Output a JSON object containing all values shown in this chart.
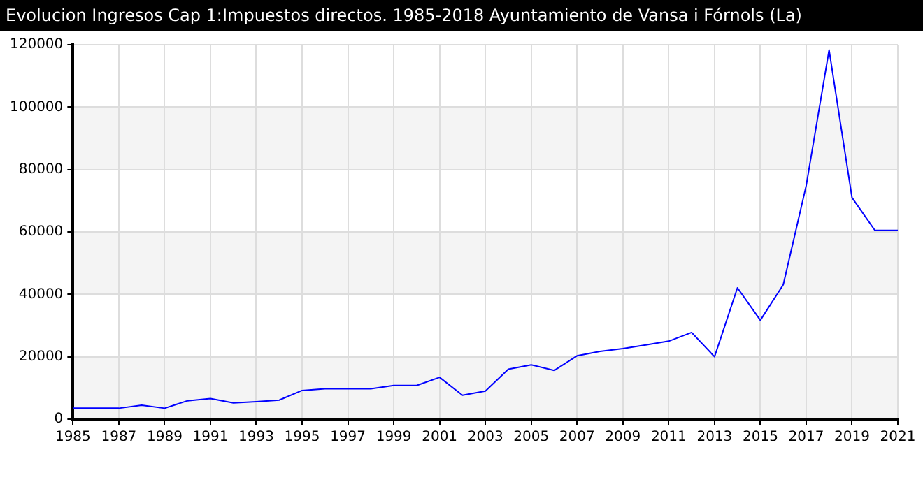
{
  "chart_data": {
    "type": "line",
    "title": "Evolucion Ingresos Cap 1:Impuestos directos. 1985-2018 Ayuntamiento de Vansa i Fórnols (La)",
    "x": [
      1985,
      1986,
      1987,
      1988,
      1989,
      1990,
      1991,
      1992,
      1993,
      1994,
      1995,
      1996,
      1997,
      1998,
      1999,
      2000,
      2001,
      2002,
      2003,
      2004,
      2005,
      2006,
      2007,
      2008,
      2009,
      2010,
      2011,
      2012,
      2013,
      2014,
      2015,
      2016,
      2017,
      2018,
      2019,
      2020,
      2021
    ],
    "series": [
      {
        "color": "#0000ff",
        "values": [
          3500,
          3500,
          3500,
          4500,
          3500,
          5900,
          6600,
          5200,
          5600,
          6100,
          9200,
          9750,
          9750,
          9750,
          10800,
          10800,
          13400,
          7650,
          9000,
          16000,
          17400,
          15600,
          20300,
          21700,
          22600,
          23800,
          25000,
          27800,
          20000,
          42100,
          31700,
          43100,
          74800,
          118300,
          71000,
          60500,
          60500
        ]
      }
    ],
    "xlim": [
      1985,
      2021
    ],
    "xticks": [
      1985,
      1987,
      1989,
      1991,
      1993,
      1995,
      1997,
      1999,
      2001,
      2003,
      2005,
      2007,
      2009,
      2011,
      2013,
      2015,
      2017,
      2019,
      2021
    ],
    "ylim": [
      0,
      120000
    ],
    "yticks": [
      0,
      20000,
      40000,
      60000,
      80000,
      100000,
      120000
    ],
    "grid": true,
    "legend": false,
    "marker": "none",
    "line_style": "solid"
  }
}
